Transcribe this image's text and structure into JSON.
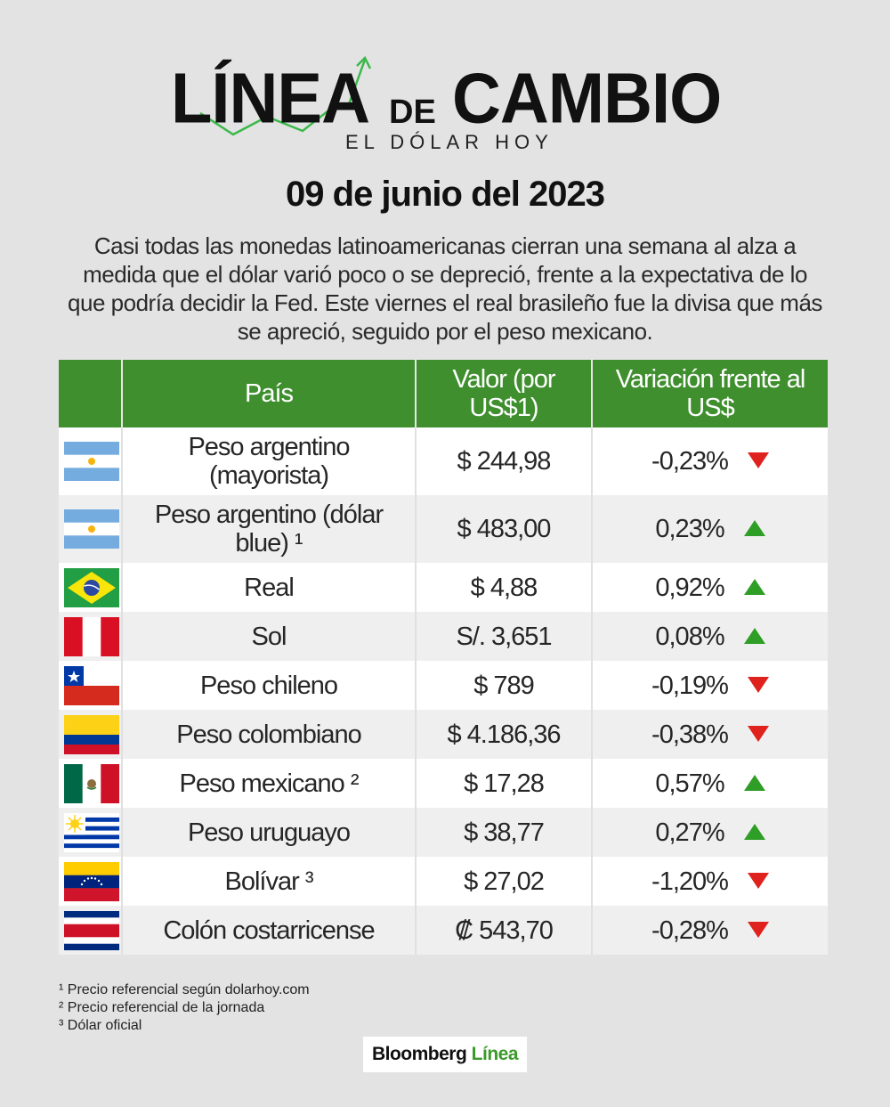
{
  "logo": {
    "word1": "LÍNEA",
    "connector": "DE",
    "word2": "CAMBIO",
    "subtitle": "EL DÓLAR HOY"
  },
  "date": "09 de junio del 2023",
  "intro": "Casi todas las monedas latinoamericanas cierran una semana al alza a medida que el dólar varió poco o se depreció, frente a la expectativa de lo que podría decidir la Fed. Este viernes el real brasileño fue la divisa que más se apreció, seguido por el peso mexicano.",
  "table": {
    "headers": [
      "",
      "País",
      "Valor (por US$1)",
      "Variación frente al US$"
    ],
    "rows": [
      {
        "flag": "argentina-flag",
        "country": "Peso argentino (mayorista)",
        "value": "$ 244,98",
        "change": "-0,23%",
        "direction": "down"
      },
      {
        "flag": "argentina-flag",
        "country": "Peso argentino (dólar blue) ¹",
        "value": "$ 483,00",
        "change": "0,23%",
        "direction": "up"
      },
      {
        "flag": "brazil-flag",
        "country": "Real",
        "value": "$ 4,88",
        "change": "0,92%",
        "direction": "up"
      },
      {
        "flag": "peru-flag",
        "country": "Sol",
        "value": "S/. 3,651",
        "change": "0,08%",
        "direction": "up"
      },
      {
        "flag": "chile-flag",
        "country": "Peso chileno",
        "value": "$ 789",
        "change": "-0,19%",
        "direction": "down"
      },
      {
        "flag": "colombia-flag",
        "country": "Peso colombiano",
        "value": "$ 4.186,36",
        "change": "-0,38%",
        "direction": "down"
      },
      {
        "flag": "mexico-flag",
        "country": "Peso mexicano ²",
        "value": "$ 17,28",
        "change": "0,57%",
        "direction": "up"
      },
      {
        "flag": "uruguay-flag",
        "country": "Peso uruguayo",
        "value": "$ 38,77",
        "change": "0,27%",
        "direction": "up"
      },
      {
        "flag": "venezuela-flag",
        "country": "Bolívar ³",
        "value": "$ 27,02",
        "change": "-1,20%",
        "direction": "down"
      },
      {
        "flag": "costa-rica-flag",
        "country": "Colón costarricense",
        "value": "₡ 543,70",
        "change": "-0,28%",
        "direction": "down"
      }
    ]
  },
  "footnotes": [
    "¹ Precio referencial según dolarhoy.com",
    "² Precio referencial de la jornada",
    "³ Dólar oficial"
  ],
  "brand": {
    "part1": "Bloomberg",
    "part2": "Línea"
  },
  "colors": {
    "header_green": "#3f8f2e",
    "up": "#2f9e26",
    "down": "#e0221f",
    "background": "#e3e3e3"
  }
}
